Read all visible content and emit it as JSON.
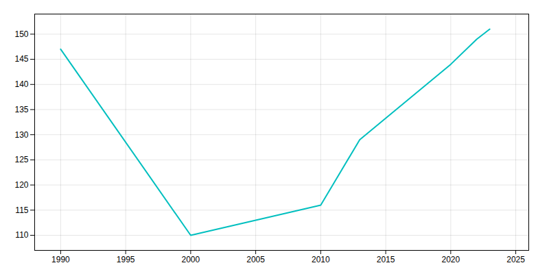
{
  "chart_data": {
    "type": "line",
    "x": [
      1990,
      2000,
      2005,
      2010,
      2013,
      2020,
      2022,
      2023
    ],
    "values": [
      147,
      110,
      113,
      116,
      129,
      144,
      149,
      151
    ],
    "color": "#00BFBF",
    "xlim": [
      1988,
      2026
    ],
    "ylim": [
      107,
      154
    ],
    "xticks": [
      1990,
      1995,
      2000,
      2005,
      2010,
      2015,
      2020,
      2025
    ],
    "yticks": [
      110,
      115,
      120,
      125,
      130,
      135,
      140,
      145,
      150
    ],
    "grid": true
  }
}
